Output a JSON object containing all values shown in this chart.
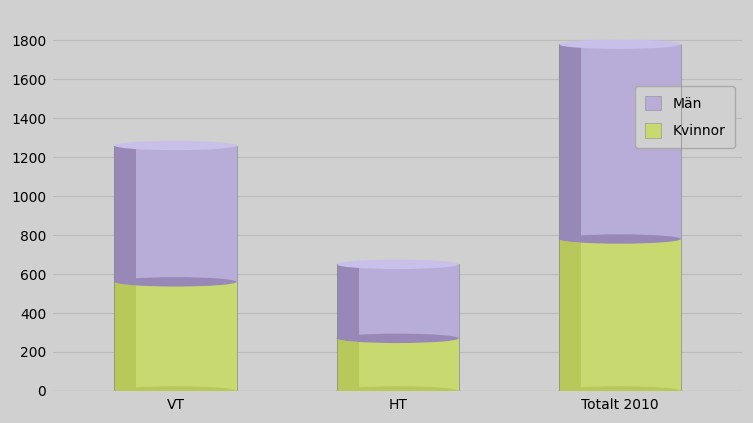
{
  "categories": [
    "VT",
    "HT",
    "Totalt 2010"
  ],
  "kvinnor_values": [
    560,
    270,
    780
  ],
  "man_values": [
    700,
    380,
    1000
  ],
  "color_kvinnor_light": "#d4e07a",
  "color_kvinnor_mid": "#c8d96f",
  "color_kvinnor_dark": "#b8c85a",
  "color_man_light": "#c8c0e8",
  "color_man_mid": "#b8acd8",
  "color_man_dark": "#9888b8",
  "background_color": "#d0d0d0",
  "grid_color": "#bbbbbb",
  "ylim": [
    0,
    1950
  ],
  "yticks": [
    0,
    200,
    400,
    600,
    800,
    1000,
    1200,
    1400,
    1600,
    1800
  ],
  "legend_man": "Män",
  "legend_kvinnor": "Kvinnor",
  "bar_width": 0.55,
  "ellipse_ratio": 0.045,
  "tick_fontsize": 10,
  "figsize": [
    7.53,
    4.23
  ],
  "dpi": 100
}
